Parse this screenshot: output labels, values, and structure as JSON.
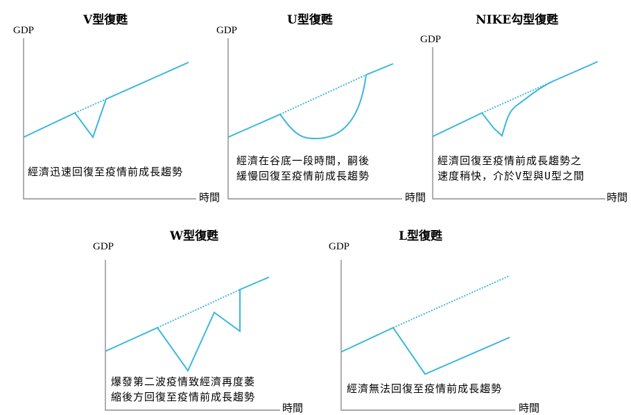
{
  "panels": {
    "v": {
      "title": "V型復甦",
      "y_axis": "GDP",
      "x_axis": "時間",
      "desc": [
        "經濟迅速回復至疫情前成長趨勢"
      ]
    },
    "u": {
      "title": "U型復甦",
      "y_axis": "GDP",
      "x_axis": "時間",
      "desc": [
        "經濟在谷底一段時間，嗣後",
        "緩慢回復至疫情前成長趨勢"
      ]
    },
    "nike": {
      "title": "NIKE勾型復甦",
      "y_axis": "GDP",
      "x_axis": "時間",
      "desc": [
        "經濟回復至疫情前成長趨勢之",
        "速度稍快，介於V型與U型之間"
      ]
    },
    "w": {
      "title": "W型復甦",
      "y_axis": "GDP",
      "x_axis": "時間",
      "desc": [
        "爆發第二波疫情致經濟再度萎",
        "縮後方回復至疫情前成長趨勢"
      ]
    },
    "l": {
      "title": "L型復甦",
      "y_axis": "GDP",
      "x_axis": "時間",
      "desc": [
        "經濟無法回復至疫情前成長趨勢"
      ]
    }
  },
  "colors": {
    "curve": "#3ab7dc",
    "axis": "#8c8c8c"
  }
}
